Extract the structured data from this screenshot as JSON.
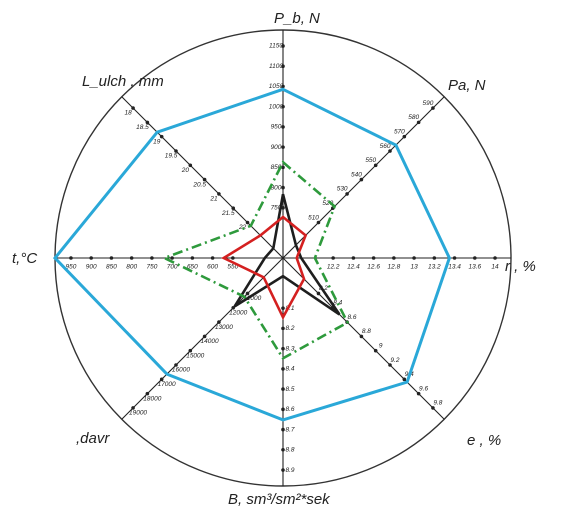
{
  "chart_data": {
    "type": "radar",
    "colors": {
      "outer_circle": "#333333",
      "axes": "#222222",
      "series_1": "#2aa8d8",
      "series_2": "#1e1e1e",
      "series_3": "#2e9a3c",
      "series_4": "#d42020"
    },
    "axes": [
      {
        "id": "pb",
        "title": "P_b, N",
        "ticks": [
          "750",
          "800",
          "850",
          "900",
          "950",
          "1000",
          "1050",
          "1100",
          "1150"
        ]
      },
      {
        "id": "pa",
        "title": "Pa, N",
        "ticks": [
          "510",
          "520",
          "530",
          "540",
          "550",
          "560",
          "570",
          "580",
          "590"
        ]
      },
      {
        "id": "r",
        "title": "r , %",
        "ticks": [
          "12.2",
          "12.4",
          "12.6",
          "12.8",
          "13",
          "13.2",
          "13.4",
          "13.6",
          "14"
        ]
      },
      {
        "id": "e",
        "title": "e , %",
        "ticks": [
          "8.2",
          "8.4",
          "8.6",
          "8.8",
          "9",
          "9.2",
          "9.4",
          "9.6",
          "9.8"
        ]
      },
      {
        "id": "b",
        "title": "B, sm³/sm²*sek",
        "ticks": [
          "8.1",
          "8.2",
          "8.3",
          "8.4",
          "8.5",
          "8.6",
          "8.7",
          "8.8",
          "8.9"
        ]
      },
      {
        "id": "davr",
        "title": ",davr",
        "ticks": [
          "11000",
          "12000",
          "13000",
          "14000",
          "15000",
          "16000",
          "17000",
          "18000",
          "19000"
        ]
      },
      {
        "id": "t",
        "title": "t,°C",
        "ticks": [
          "550",
          "600",
          "650",
          "700",
          "750",
          "800",
          "850",
          "900",
          "950"
        ]
      },
      {
        "id": "lulch",
        "title": "L_ulch , mm",
        "ticks": [
          "22",
          "21.5",
          "21",
          "20.5",
          "20",
          "19.5",
          "19",
          "18.5",
          "18"
        ]
      }
    ],
    "series": [
      {
        "color_key": "series_1",
        "style": "solid",
        "r": [
          0.74,
          0.7,
          0.73,
          0.77,
          0.71,
          0.72,
          1.0,
          0.78
        ]
      },
      {
        "color_key": "series_2",
        "style": "solid",
        "r": [
          0.28,
          0.08,
          0.08,
          0.35,
          0.08,
          0.3,
          0.08,
          0.06
        ]
      },
      {
        "color_key": "series_3",
        "style": "dashed",
        "r": [
          0.42,
          0.32,
          0.14,
          0.4,
          0.44,
          0.24,
          0.52,
          0.2
        ]
      },
      {
        "color_key": "series_4",
        "style": "solid",
        "r": [
          0.18,
          0.14,
          0.06,
          0.13,
          0.26,
          0.12,
          0.26,
          0.14
        ]
      }
    ]
  }
}
